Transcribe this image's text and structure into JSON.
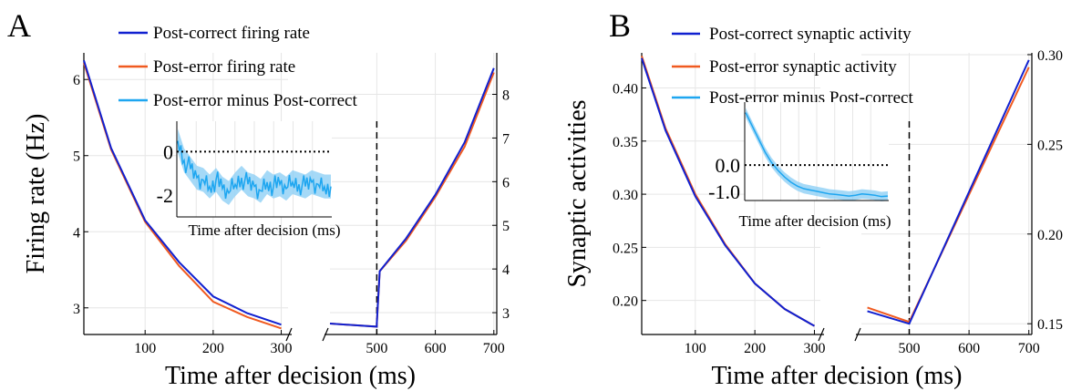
{
  "colors": {
    "post_correct": "#1020d0",
    "post_error": "#f05a20",
    "difference": "#1ea6f0",
    "difference_band": "#8fd0f5",
    "grid": "#e6e6e6",
    "axis": "#000000"
  },
  "chart_data": [
    {
      "panel_label": "A",
      "type": "line",
      "xlabel": "Time after decision (ms)",
      "ylabel": "Firing rate (Hz)",
      "legend": [
        "Post-correct firing rate",
        "Post-error firing rate",
        "Post-error minus Post-correct"
      ],
      "legend_position": "top",
      "left_segment": {
        "xlim": [
          10,
          310
        ],
        "ylim": [
          2.65,
          6.35
        ],
        "x_ticks": [
          100,
          200,
          300
        ],
        "y_ticks": [
          3,
          4,
          5,
          6
        ],
        "series": [
          {
            "name": "Post-correct firing rate",
            "x": [
              10,
              50,
              100,
              150,
              200,
              250,
              300
            ],
            "y": [
              6.25,
              5.1,
              4.15,
              3.6,
              3.15,
              2.93,
              2.78
            ]
          },
          {
            "name": "Post-error firing rate",
            "x": [
              10,
              50,
              100,
              150,
              200,
              250,
              300
            ],
            "y": [
              6.22,
              5.08,
              4.13,
              3.55,
              3.08,
              2.88,
              2.73
            ]
          }
        ]
      },
      "right_segment": {
        "xlim": [
          420,
          705
        ],
        "ylim": [
          2.5,
          8.95
        ],
        "x_ticks": [
          500,
          600,
          700
        ],
        "y_ticks": [
          3,
          4,
          5,
          6,
          7,
          8
        ],
        "y_axis_side": "right",
        "series": [
          {
            "name": "Post-correct firing rate",
            "x": [
              420,
              500,
              500,
              505,
              550,
              600,
              650,
              700
            ],
            "y": [
              2.75,
              2.68,
              2.75,
              3.95,
              4.7,
              5.7,
              6.9,
              8.6
            ]
          },
          {
            "name": "Post-error firing rate",
            "x": [
              420,
              500,
              500,
              505,
              550,
              600,
              650,
              700
            ],
            "y": [
              2.75,
              2.68,
              2.75,
              3.95,
              4.65,
              5.65,
              6.8,
              8.5
            ]
          }
        ]
      },
      "vertical_line_x": 500,
      "inset": {
        "xlabel": "Time after decision (ms)",
        "x_ticks": [],
        "y_ticks": [
          0,
          -2
        ],
        "ylim": [
          -3.0,
          1.4
        ],
        "zero_line": true,
        "series": {
          "name": "Post-error minus Post-correct",
          "values": [
            0.5,
            -0.4,
            -0.8,
            -1.2,
            -1.3,
            -1.6,
            -1.3,
            -1.7,
            -1.9,
            -1.5,
            -1.2,
            -1.5,
            -1.6,
            -1.8,
            -1.4,
            -1.6,
            -1.5,
            -1.7,
            -1.4,
            -1.5,
            -1.6,
            -1.4,
            -1.5,
            -1.6,
            -1.6
          ]
        }
      }
    },
    {
      "panel_label": "B",
      "type": "line",
      "xlabel": "Time after decision (ms)",
      "ylabel": "Synaptic activities",
      "legend": [
        "Post-correct synaptic activity",
        "Post-error synaptic activity",
        "Post-error minus Post-correct"
      ],
      "legend_position": "top",
      "left_segment": {
        "xlim": [
          10,
          310
        ],
        "ylim": [
          0.168,
          0.433
        ],
        "x_ticks": [
          100,
          200,
          300
        ],
        "y_ticks": [
          0.2,
          0.25,
          0.3,
          0.35,
          0.4
        ],
        "series": [
          {
            "name": "Post-correct synaptic activity",
            "x": [
              10,
              50,
              100,
              150,
              200,
              250,
              300
            ],
            "y": [
              0.428,
              0.36,
              0.298,
              0.252,
              0.216,
              0.192,
              0.176
            ]
          },
          {
            "name": "Post-error synaptic activity",
            "x": [
              10,
              50,
              100,
              150,
              200,
              250,
              300
            ],
            "y": [
              0.43,
              0.362,
              0.3,
              0.253,
              0.216,
              0.192,
              0.176
            ]
          }
        ]
      },
      "right_segment": {
        "xlim": [
          420,
          705
        ],
        "ylim": [
          0.144,
          0.301
        ],
        "x_ticks": [
          500,
          600,
          700
        ],
        "y_ticks": [
          0.15,
          0.2,
          0.25,
          0.3
        ],
        "y_axis_side": "right",
        "series": [
          {
            "name": "Post-correct synaptic activity",
            "x": [
              430,
              500,
              700
            ],
            "y": [
              0.157,
              0.15,
              0.297
            ]
          },
          {
            "name": "Post-error synaptic activity",
            "x": [
              430,
              500,
              700
            ],
            "y": [
              0.159,
              0.151,
              0.293
            ]
          }
        ]
      },
      "vertical_line_x": 500,
      "inset": {
        "xlabel": "Time after decision (ms)",
        "x_ticks": [],
        "y_ticks": [
          "0.0",
          "-1.0"
        ],
        "ylim": [
          -1.35,
          2.4
        ],
        "zero_line": true,
        "series": {
          "name": "Post-error minus Post-correct",
          "values": [
            2.0,
            1.5,
            1.0,
            0.5,
            0.1,
            -0.2,
            -0.45,
            -0.65,
            -0.8,
            -0.9,
            -0.95,
            -1.0,
            -1.05,
            -1.1,
            -1.12,
            -1.15,
            -1.18,
            -1.15,
            -1.1,
            -1.12,
            -1.15,
            -1.2,
            -1.18
          ]
        }
      }
    }
  ]
}
